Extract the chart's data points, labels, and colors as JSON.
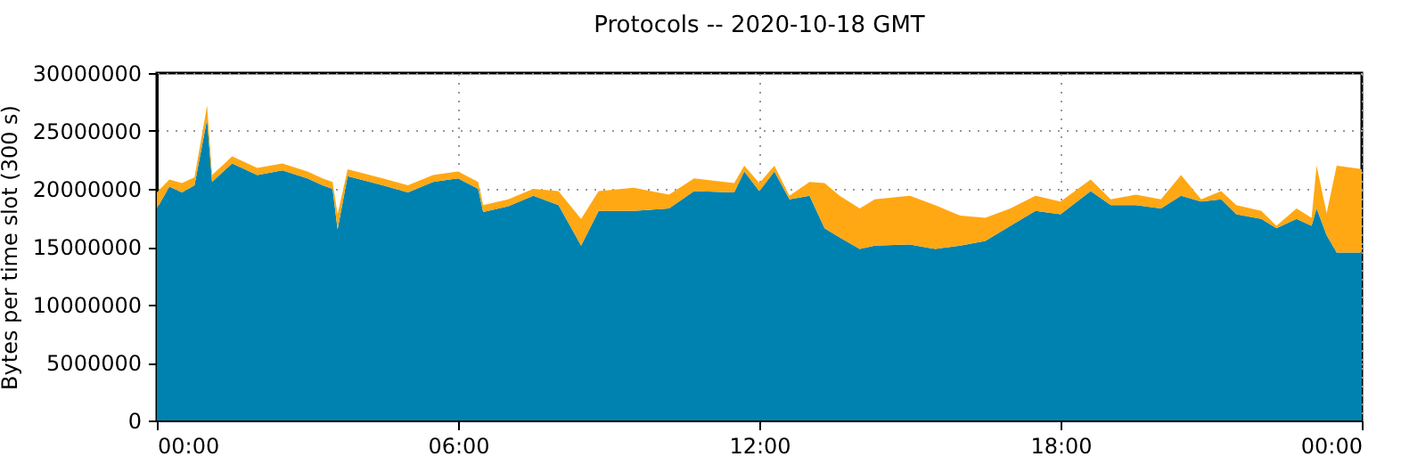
{
  "chart_data": {
    "type": "area",
    "title": "Protocols -- 2020-10-18 GMT",
    "ylabel": "Bytes per time slot (300 s)",
    "stacked": true,
    "x": [
      0,
      0.25,
      0.5,
      0.75,
      1.0,
      1.1,
      1.5,
      2.0,
      2.5,
      3.0,
      3.3,
      3.5,
      3.6,
      3.8,
      4.5,
      5.0,
      5.5,
      6.0,
      6.4,
      6.5,
      7.0,
      7.5,
      8.0,
      8.45,
      8.8,
      9.5,
      10.2,
      10.7,
      11.5,
      11.7,
      12.0,
      12.3,
      12.6,
      13.0,
      13.3,
      13.6,
      14.0,
      14.3,
      15.0,
      15.5,
      16.0,
      16.5,
      17.0,
      17.5,
      18.0,
      18.6,
      19.0,
      19.5,
      20.0,
      20.4,
      20.8,
      21.2,
      21.5,
      22.0,
      22.3,
      22.7,
      23.0,
      23.1,
      23.3,
      23.5,
      24.0
    ],
    "series": [
      {
        "color": "#0082b0",
        "values": [
          18300000,
          20200000,
          19700000,
          20300000,
          26000000,
          20600000,
          22200000,
          21200000,
          21600000,
          20900000,
          20300000,
          20000000,
          16500000,
          21100000,
          20300000,
          19700000,
          20600000,
          20900000,
          20000000,
          18000000,
          18500000,
          19400000,
          18600000,
          15100000,
          18100000,
          18100000,
          18300000,
          19800000,
          19700000,
          21500000,
          19800000,
          21500000,
          19100000,
          19400000,
          16600000,
          15800000,
          14800000,
          15100000,
          15200000,
          14800000,
          15100000,
          15500000,
          16800000,
          18100000,
          17800000,
          19800000,
          18600000,
          18600000,
          18300000,
          19400000,
          18900000,
          19100000,
          17800000,
          17400000,
          16600000,
          17400000,
          16800000,
          18300000,
          16000000,
          14500000,
          14500000
        ]
      },
      {
        "color": "#ffa814",
        "values": [
          1400000,
          600000,
          800000,
          700000,
          1200000,
          600000,
          600000,
          600000,
          600000,
          600000,
          600000,
          600000,
          1300000,
          600000,
          600000,
          600000,
          600000,
          600000,
          600000,
          600000,
          600000,
          600000,
          1200000,
          2300000,
          1700000,
          2000000,
          1200000,
          1100000,
          800000,
          500000,
          700000,
          500000,
          300000,
          1200000,
          3900000,
          3600000,
          3500000,
          4000000,
          4200000,
          3800000,
          2600000,
          2000000,
          1500000,
          1300000,
          1100000,
          1000000,
          500000,
          900000,
          800000,
          1800000,
          200000,
          700000,
          800000,
          700000,
          200000,
          900000,
          700000,
          3700000,
          1900000,
          7500000,
          7200000
        ]
      }
    ],
    "xlim": [
      0,
      24
    ],
    "xticks": [
      {
        "value": 0,
        "label": "00:00"
      },
      {
        "value": 6,
        "label": "06:00"
      },
      {
        "value": 12,
        "label": "12:00"
      },
      {
        "value": 18,
        "label": "18:00"
      },
      {
        "value": 24,
        "label": "00:00"
      }
    ],
    "ylim": [
      0,
      30000000
    ],
    "yticks": [
      0,
      5000000,
      10000000,
      15000000,
      20000000,
      25000000,
      30000000
    ],
    "grid": true,
    "legend": false
  }
}
